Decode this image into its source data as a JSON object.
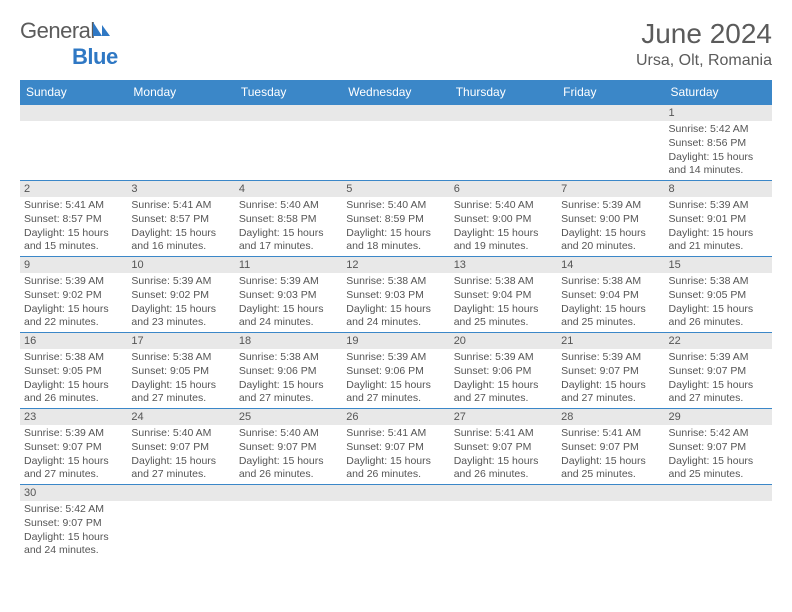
{
  "logo": {
    "text_gray": "General",
    "text_blue": "Blue"
  },
  "title": "June 2024",
  "location": "Ursa, Olt, Romania",
  "calendar": {
    "day_headers": [
      "Sunday",
      "Monday",
      "Tuesday",
      "Wednesday",
      "Thursday",
      "Friday",
      "Saturday"
    ],
    "header_bg": "#3b87c8",
    "header_fg": "#ffffff",
    "cell_border": "#3b87c8",
    "daynum_bg": "#e8e8e8",
    "body_bg": "#ffffff",
    "text_color": "#555555",
    "fontsize_header": 12,
    "fontsize_cell": 10.5,
    "weeks": [
      [
        {
          "n": "",
          "sr": "",
          "ss": "",
          "dl": ""
        },
        {
          "n": "",
          "sr": "",
          "ss": "",
          "dl": ""
        },
        {
          "n": "",
          "sr": "",
          "ss": "",
          "dl": ""
        },
        {
          "n": "",
          "sr": "",
          "ss": "",
          "dl": ""
        },
        {
          "n": "",
          "sr": "",
          "ss": "",
          "dl": ""
        },
        {
          "n": "",
          "sr": "",
          "ss": "",
          "dl": ""
        },
        {
          "n": "1",
          "sr": "Sunrise: 5:42 AM",
          "ss": "Sunset: 8:56 PM",
          "dl": "Daylight: 15 hours and 14 minutes."
        }
      ],
      [
        {
          "n": "2",
          "sr": "Sunrise: 5:41 AM",
          "ss": "Sunset: 8:57 PM",
          "dl": "Daylight: 15 hours and 15 minutes."
        },
        {
          "n": "3",
          "sr": "Sunrise: 5:41 AM",
          "ss": "Sunset: 8:57 PM",
          "dl": "Daylight: 15 hours and 16 minutes."
        },
        {
          "n": "4",
          "sr": "Sunrise: 5:40 AM",
          "ss": "Sunset: 8:58 PM",
          "dl": "Daylight: 15 hours and 17 minutes."
        },
        {
          "n": "5",
          "sr": "Sunrise: 5:40 AM",
          "ss": "Sunset: 8:59 PM",
          "dl": "Daylight: 15 hours and 18 minutes."
        },
        {
          "n": "6",
          "sr": "Sunrise: 5:40 AM",
          "ss": "Sunset: 9:00 PM",
          "dl": "Daylight: 15 hours and 19 minutes."
        },
        {
          "n": "7",
          "sr": "Sunrise: 5:39 AM",
          "ss": "Sunset: 9:00 PM",
          "dl": "Daylight: 15 hours and 20 minutes."
        },
        {
          "n": "8",
          "sr": "Sunrise: 5:39 AM",
          "ss": "Sunset: 9:01 PM",
          "dl": "Daylight: 15 hours and 21 minutes."
        }
      ],
      [
        {
          "n": "9",
          "sr": "Sunrise: 5:39 AM",
          "ss": "Sunset: 9:02 PM",
          "dl": "Daylight: 15 hours and 22 minutes."
        },
        {
          "n": "10",
          "sr": "Sunrise: 5:39 AM",
          "ss": "Sunset: 9:02 PM",
          "dl": "Daylight: 15 hours and 23 minutes."
        },
        {
          "n": "11",
          "sr": "Sunrise: 5:39 AM",
          "ss": "Sunset: 9:03 PM",
          "dl": "Daylight: 15 hours and 24 minutes."
        },
        {
          "n": "12",
          "sr": "Sunrise: 5:38 AM",
          "ss": "Sunset: 9:03 PM",
          "dl": "Daylight: 15 hours and 24 minutes."
        },
        {
          "n": "13",
          "sr": "Sunrise: 5:38 AM",
          "ss": "Sunset: 9:04 PM",
          "dl": "Daylight: 15 hours and 25 minutes."
        },
        {
          "n": "14",
          "sr": "Sunrise: 5:38 AM",
          "ss": "Sunset: 9:04 PM",
          "dl": "Daylight: 15 hours and 25 minutes."
        },
        {
          "n": "15",
          "sr": "Sunrise: 5:38 AM",
          "ss": "Sunset: 9:05 PM",
          "dl": "Daylight: 15 hours and 26 minutes."
        }
      ],
      [
        {
          "n": "16",
          "sr": "Sunrise: 5:38 AM",
          "ss": "Sunset: 9:05 PM",
          "dl": "Daylight: 15 hours and 26 minutes."
        },
        {
          "n": "17",
          "sr": "Sunrise: 5:38 AM",
          "ss": "Sunset: 9:05 PM",
          "dl": "Daylight: 15 hours and 27 minutes."
        },
        {
          "n": "18",
          "sr": "Sunrise: 5:38 AM",
          "ss": "Sunset: 9:06 PM",
          "dl": "Daylight: 15 hours and 27 minutes."
        },
        {
          "n": "19",
          "sr": "Sunrise: 5:39 AM",
          "ss": "Sunset: 9:06 PM",
          "dl": "Daylight: 15 hours and 27 minutes."
        },
        {
          "n": "20",
          "sr": "Sunrise: 5:39 AM",
          "ss": "Sunset: 9:06 PM",
          "dl": "Daylight: 15 hours and 27 minutes."
        },
        {
          "n": "21",
          "sr": "Sunrise: 5:39 AM",
          "ss": "Sunset: 9:07 PM",
          "dl": "Daylight: 15 hours and 27 minutes."
        },
        {
          "n": "22",
          "sr": "Sunrise: 5:39 AM",
          "ss": "Sunset: 9:07 PM",
          "dl": "Daylight: 15 hours and 27 minutes."
        }
      ],
      [
        {
          "n": "23",
          "sr": "Sunrise: 5:39 AM",
          "ss": "Sunset: 9:07 PM",
          "dl": "Daylight: 15 hours and 27 minutes."
        },
        {
          "n": "24",
          "sr": "Sunrise: 5:40 AM",
          "ss": "Sunset: 9:07 PM",
          "dl": "Daylight: 15 hours and 27 minutes."
        },
        {
          "n": "25",
          "sr": "Sunrise: 5:40 AM",
          "ss": "Sunset: 9:07 PM",
          "dl": "Daylight: 15 hours and 26 minutes."
        },
        {
          "n": "26",
          "sr": "Sunrise: 5:41 AM",
          "ss": "Sunset: 9:07 PM",
          "dl": "Daylight: 15 hours and 26 minutes."
        },
        {
          "n": "27",
          "sr": "Sunrise: 5:41 AM",
          "ss": "Sunset: 9:07 PM",
          "dl": "Daylight: 15 hours and 26 minutes."
        },
        {
          "n": "28",
          "sr": "Sunrise: 5:41 AM",
          "ss": "Sunset: 9:07 PM",
          "dl": "Daylight: 15 hours and 25 minutes."
        },
        {
          "n": "29",
          "sr": "Sunrise: 5:42 AM",
          "ss": "Sunset: 9:07 PM",
          "dl": "Daylight: 15 hours and 25 minutes."
        }
      ],
      [
        {
          "n": "30",
          "sr": "Sunrise: 5:42 AM",
          "ss": "Sunset: 9:07 PM",
          "dl": "Daylight: 15 hours and 24 minutes."
        },
        {
          "n": "",
          "sr": "",
          "ss": "",
          "dl": ""
        },
        {
          "n": "",
          "sr": "",
          "ss": "",
          "dl": ""
        },
        {
          "n": "",
          "sr": "",
          "ss": "",
          "dl": ""
        },
        {
          "n": "",
          "sr": "",
          "ss": "",
          "dl": ""
        },
        {
          "n": "",
          "sr": "",
          "ss": "",
          "dl": ""
        },
        {
          "n": "",
          "sr": "",
          "ss": "",
          "dl": ""
        }
      ]
    ]
  }
}
